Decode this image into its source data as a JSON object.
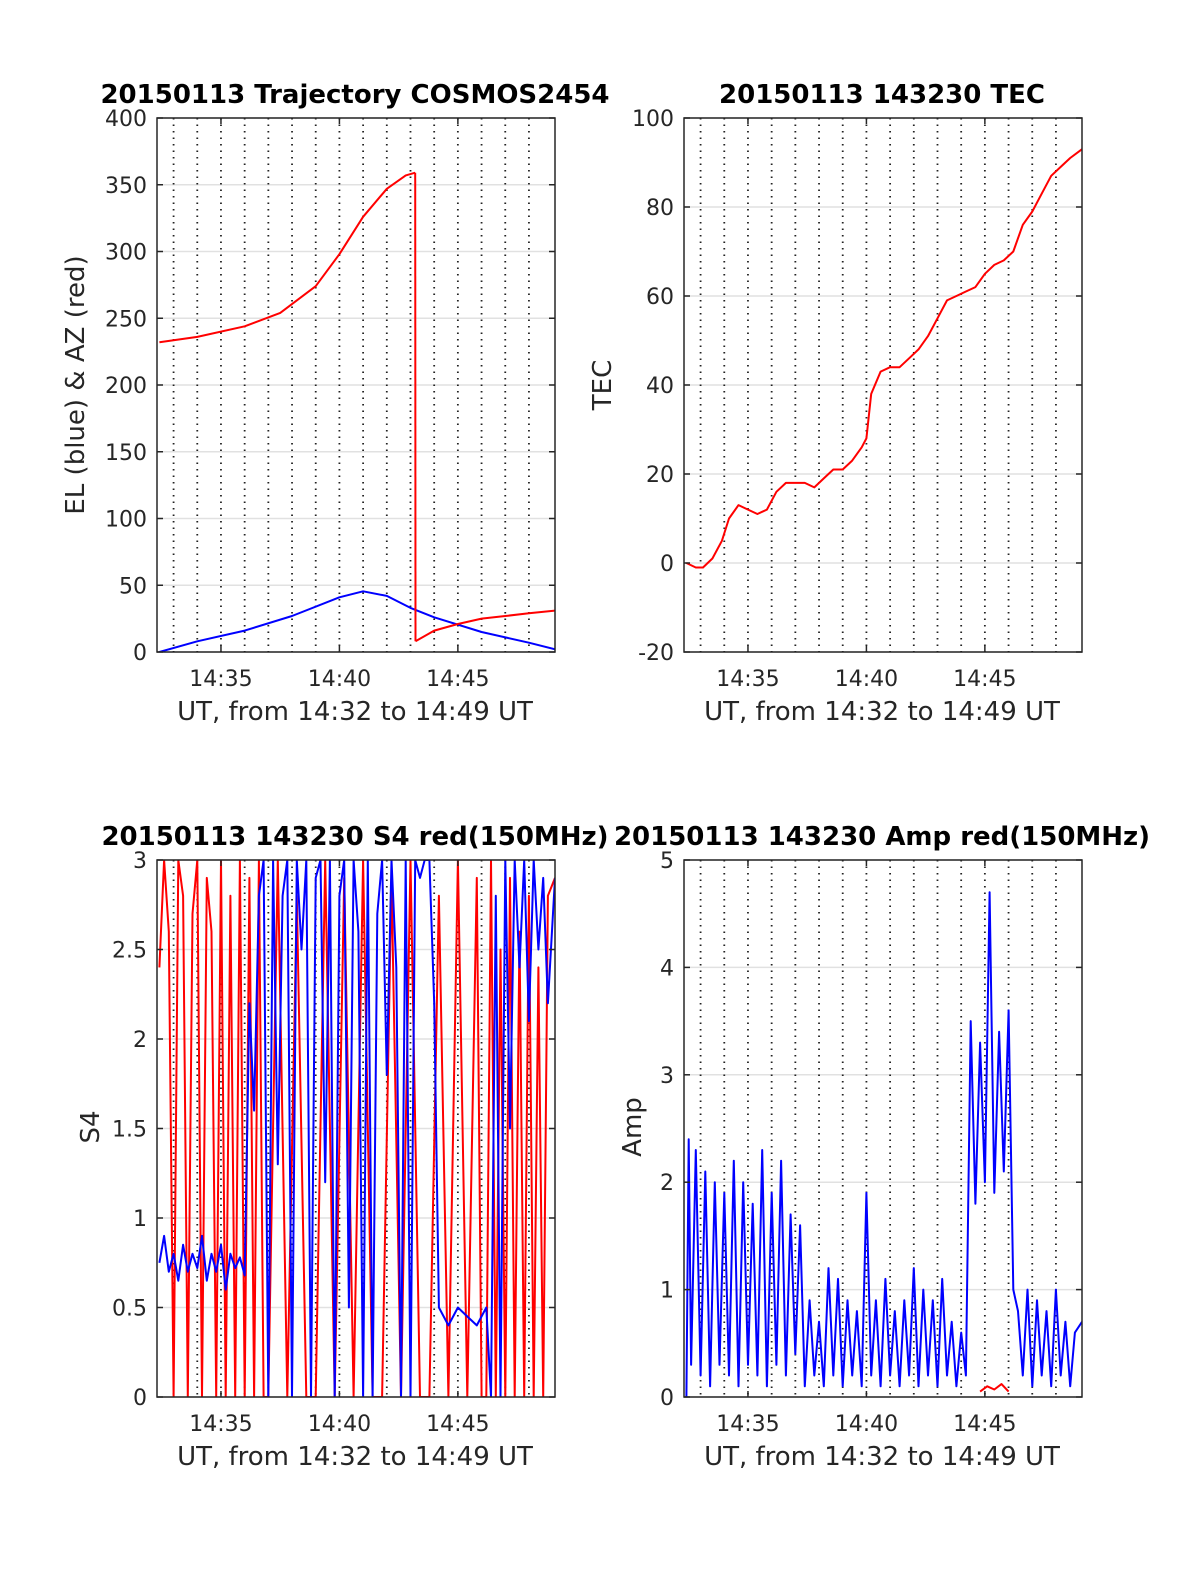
{
  "figure": {
    "colors": {
      "el": "#0000ff",
      "az": "#ff0000",
      "tec": "#ff0000",
      "s4_red": "#ff0000",
      "s4_blue": "#0000ff",
      "amp_red": "#ff0000",
      "amp_blue": "#0000ff"
    }
  },
  "chart_data": [
    {
      "id": "traj",
      "type": "line",
      "title": "20150113 Trajectory COSMOS2454",
      "xlabel": "UT, from 14:32 to 14:49 UT",
      "ylabel": "EL (blue) & AZ (red)",
      "x_unit": "minutes after 14:00 UT",
      "xlim": [
        32.3,
        49.1
      ],
      "ylim": [
        0,
        400
      ],
      "yticks": [
        0,
        50,
        100,
        150,
        200,
        250,
        300,
        350,
        400
      ],
      "ytick_labels": [
        "0",
        "50",
        "100",
        "150",
        "200",
        "250",
        "300",
        "350",
        "400"
      ],
      "xticks": [
        35,
        40,
        45
      ],
      "xtick_labels": [
        "14:35",
        "14:40",
        "14:45"
      ],
      "minor_xticks": [
        33,
        34,
        35,
        36,
        37,
        38,
        39,
        40,
        41,
        42,
        43,
        44,
        45,
        46,
        47,
        48
      ],
      "grid": true,
      "series": [
        {
          "color": "#0000ff",
          "x": [
            32.4,
            34,
            36,
            38,
            40,
            41,
            42,
            43,
            44,
            46,
            48,
            49.1
          ],
          "y": [
            0,
            8,
            16,
            27,
            41,
            45.5,
            42,
            33,
            26,
            15,
            7,
            2
          ]
        },
        {
          "color": "#ff0000",
          "x": [
            32.4,
            34,
            36,
            37.5,
            39,
            40,
            41,
            42,
            42.8,
            43.2
          ],
          "y": [
            232,
            236,
            244,
            254,
            274,
            298,
            326,
            347,
            357,
            359
          ]
        },
        {
          "color": "#ff0000",
          "x": [
            43.2,
            43.21
          ],
          "y": [
            359,
            8
          ]
        },
        {
          "color": "#ff0000",
          "x": [
            43.21,
            44,
            45,
            46,
            47,
            48,
            49.1
          ],
          "y": [
            8,
            16,
            21,
            25,
            27,
            29,
            31
          ]
        }
      ]
    },
    {
      "id": "tec",
      "type": "line",
      "title": "20150113 143230 TEC",
      "xlabel": "UT, from 14:32 to 14:49 UT",
      "ylabel": "TEC",
      "x_unit": "minutes after 14:00 UT",
      "xlim": [
        32.3,
        49.1
      ],
      "ylim": [
        -20,
        100
      ],
      "yticks": [
        -20,
        0,
        20,
        40,
        60,
        80,
        100
      ],
      "ytick_labels": [
        "-20",
        "0",
        "20",
        "40",
        "60",
        "80",
        "100"
      ],
      "xticks": [
        35,
        40,
        45
      ],
      "xtick_labels": [
        "14:35",
        "14:40",
        "14:45"
      ],
      "minor_xticks": [
        33,
        34,
        35,
        36,
        37,
        38,
        39,
        40,
        41,
        42,
        43,
        44,
        45,
        46,
        47,
        48
      ],
      "grid": true,
      "series": [
        {
          "color": "#ff0000",
          "x": [
            32.4,
            32.8,
            33.1,
            33.5,
            33.9,
            34.2,
            34.6,
            35.0,
            35.4,
            35.8,
            36.2,
            36.6,
            37.0,
            37.4,
            37.8,
            38.2,
            38.6,
            39.0,
            39.4,
            39.8,
            40.0,
            40.2,
            40.6,
            41.0,
            41.4,
            41.8,
            42.2,
            42.6,
            43.0,
            43.4,
            43.8,
            44.2,
            44.6,
            45.0,
            45.4,
            45.8,
            46.2,
            46.6,
            47.0,
            47.4,
            47.8,
            48.2,
            48.6,
            49.1
          ],
          "y": [
            0,
            -1,
            -1,
            1,
            5,
            10,
            13,
            12,
            11,
            12,
            16,
            18,
            18,
            18,
            17,
            19,
            21,
            21,
            23,
            26,
            28,
            38,
            43,
            44,
            44,
            46,
            48,
            51,
            55,
            59,
            60,
            61,
            62,
            65,
            67,
            68,
            70,
            76,
            79,
            83,
            87,
            89,
            91,
            93
          ]
        }
      ]
    },
    {
      "id": "s4",
      "type": "line",
      "title": "20150113 143230 S4 red(150MHz)",
      "xlabel": "UT, from 14:32 to 14:49 UT",
      "ylabel": "S4",
      "x_unit": "minutes after 14:00 UT",
      "xlim": [
        32.3,
        49.1
      ],
      "ylim": [
        0,
        3
      ],
      "yticks": [
        0,
        0.5,
        1,
        1.5,
        2,
        2.5,
        3
      ],
      "ytick_labels": [
        "0",
        "0.5",
        "1",
        "1.5",
        "2",
        "2.5",
        "3"
      ],
      "xticks": [
        35,
        40,
        45
      ],
      "xtick_labels": [
        "14:35",
        "14:40",
        "14:45"
      ],
      "minor_xticks": [
        33,
        34,
        35,
        36,
        37,
        38,
        39,
        40,
        41,
        42,
        43,
        44,
        45,
        46,
        47,
        48
      ],
      "grid": true,
      "series": [
        {
          "color": "#ff0000",
          "x": [
            32.4,
            32.6,
            32.8,
            33.0,
            33.2,
            33.4,
            33.6,
            33.8,
            34.0,
            34.2,
            34.4,
            34.6,
            34.8,
            35.0,
            35.2,
            35.4,
            35.6,
            35.8,
            36.0,
            36.2,
            36.4,
            36.6,
            36.8,
            37.0,
            37.4,
            37.8,
            38.2,
            38.6,
            39.0,
            39.4,
            39.8,
            40.2,
            40.6,
            41.0,
            41.4,
            41.8,
            42.2,
            42.6,
            43.0,
            43.4,
            43.8,
            44.2,
            44.6,
            45.0,
            45.4,
            45.8,
            46.0,
            46.2,
            46.4,
            46.6,
            46.8,
            47.0,
            47.2,
            47.4,
            47.6,
            47.8,
            48.0,
            48.2,
            48.4,
            48.6,
            48.8,
            49.1
          ],
          "y": [
            2.4,
            3,
            2.6,
            0,
            3,
            2.8,
            0,
            2.7,
            3,
            0,
            2.9,
            2.6,
            0,
            3,
            0,
            2.8,
            0,
            3,
            0,
            2.9,
            0,
            3,
            0,
            0,
            3,
            0,
            2.8,
            0,
            0,
            3,
            0,
            2.9,
            0,
            3,
            0,
            0,
            2.9,
            0,
            3,
            0,
            0,
            2.8,
            0,
            3,
            0,
            2.9,
            0,
            0,
            3,
            0,
            2.5,
            0,
            2.9,
            0,
            2.6,
            0,
            2.8,
            0,
            2.4,
            0,
            2.8,
            2.9
          ]
        },
        {
          "color": "#0000ff",
          "x": [
            32.4,
            32.6,
            32.8,
            33.0,
            33.2,
            33.4,
            33.6,
            33.8,
            34.0,
            34.2,
            34.4,
            34.6,
            34.8,
            35.0,
            35.2,
            35.4,
            35.6,
            35.8,
            36.0,
            36.2,
            36.4,
            36.6,
            36.8,
            37.0,
            37.2,
            37.4,
            37.6,
            37.8,
            38.0,
            38.2,
            38.4,
            38.6,
            38.8,
            39.0,
            39.2,
            39.4,
            39.6,
            39.8,
            40.0,
            40.2,
            40.4,
            40.6,
            40.8,
            41.0,
            41.2,
            41.4,
            41.6,
            41.8,
            42.0,
            42.2,
            42.4,
            42.6,
            42.8,
            43.0,
            43.2,
            43.4,
            43.6,
            43.8,
            44.0,
            44.2,
            44.6,
            45.0,
            45.4,
            45.8,
            46.2,
            46.4,
            46.6,
            46.8,
            47.0,
            47.2,
            47.4,
            47.6,
            47.8,
            48.0,
            48.2,
            48.4,
            48.6,
            48.8,
            49.1
          ],
          "y": [
            0.75,
            0.9,
            0.7,
            0.8,
            0.65,
            0.85,
            0.7,
            0.8,
            0.72,
            0.9,
            0.65,
            0.8,
            0.7,
            0.85,
            0.6,
            0.8,
            0.72,
            0.78,
            0.68,
            2.2,
            1.6,
            2.8,
            3,
            0,
            3,
            1.3,
            2.8,
            3,
            0,
            3,
            2.5,
            3,
            0,
            2.9,
            3,
            1.2,
            3,
            0,
            2.8,
            3,
            0.5,
            3,
            2.6,
            0,
            3,
            0,
            2.7,
            3,
            1.8,
            3,
            2.4,
            0,
            3,
            0,
            3,
            2.9,
            3,
            3,
            2.2,
            0.5,
            0.4,
            0.5,
            0.45,
            0.4,
            0.5,
            0,
            2.8,
            0,
            3,
            1.5,
            3,
            2.4,
            3,
            2.1,
            3,
            2.5,
            2.9,
            2.2,
            2.9
          ]
        }
      ]
    },
    {
      "id": "amp",
      "type": "line",
      "title": "20150113 143230 Amp red(150MHz)",
      "xlabel": "UT, from 14:32 to 14:49 UT",
      "ylabel": "Amp",
      "x_unit": "minutes after 14:00 UT",
      "xlim": [
        32.3,
        49.1
      ],
      "ylim": [
        0,
        5
      ],
      "yticks": [
        0,
        1,
        2,
        3,
        4,
        5
      ],
      "ytick_labels": [
        "0",
        "1",
        "2",
        "3",
        "4",
        "5"
      ],
      "xticks": [
        35,
        40,
        45
      ],
      "xtick_labels": [
        "14:35",
        "14:40",
        "14:45"
      ],
      "minor_xticks": [
        33,
        34,
        35,
        36,
        37,
        38,
        39,
        40,
        41,
        42,
        43,
        44,
        45,
        46,
        47,
        48
      ],
      "grid": true,
      "series": [
        {
          "color": "#0000ff",
          "x": [
            32.4,
            32.5,
            32.6,
            32.8,
            33.0,
            33.2,
            33.4,
            33.6,
            33.8,
            34.0,
            34.2,
            34.4,
            34.6,
            34.8,
            35.0,
            35.2,
            35.4,
            35.6,
            35.8,
            36.0,
            36.2,
            36.4,
            36.6,
            36.8,
            37.0,
            37.2,
            37.4,
            37.6,
            37.8,
            38.0,
            38.2,
            38.4,
            38.6,
            38.8,
            39.0,
            39.2,
            39.4,
            39.6,
            39.8,
            40.0,
            40.2,
            40.4,
            40.6,
            40.8,
            41.0,
            41.2,
            41.4,
            41.6,
            41.8,
            42.0,
            42.2,
            42.4,
            42.6,
            42.8,
            43.0,
            43.2,
            43.4,
            43.6,
            43.8,
            44.0,
            44.2,
            44.4,
            44.6,
            44.8,
            45.0,
            45.2,
            45.4,
            45.6,
            45.8,
            46.0,
            46.2,
            46.4,
            46.6,
            46.8,
            47.0,
            47.2,
            47.4,
            47.6,
            47.8,
            48.0,
            48.2,
            48.4,
            48.6,
            48.8,
            49.1
          ],
          "y": [
            0,
            2.4,
            0.3,
            2.3,
            0.2,
            2.1,
            0.1,
            2.0,
            0.3,
            1.9,
            0.2,
            2.2,
            0.1,
            2.0,
            0.3,
            1.8,
            0.2,
            2.3,
            0.1,
            1.9,
            0.3,
            2.2,
            0.2,
            1.7,
            0.4,
            1.6,
            0.1,
            0.9,
            0.2,
            0.7,
            0.1,
            1.2,
            0.2,
            1.1,
            0.1,
            0.9,
            0.2,
            0.8,
            0.1,
            1.9,
            0.2,
            0.9,
            0.1,
            1.1,
            0.2,
            0.8,
            0.1,
            0.9,
            0.2,
            1.2,
            0.1,
            1.0,
            0.2,
            0.9,
            0.1,
            1.1,
            0.2,
            0.7,
            0.1,
            0.6,
            0.2,
            3.5,
            1.8,
            3.3,
            2.0,
            4.7,
            1.9,
            3.4,
            2.1,
            3.6,
            1.0,
            0.8,
            0.2,
            1.0,
            0.1,
            0.9,
            0.2,
            0.8,
            0.1,
            1.0,
            0.2,
            0.7,
            0.1,
            0.6,
            0.7
          ]
        },
        {
          "color": "#ff0000",
          "x": [
            44.8,
            45.1,
            45.4,
            45.7,
            46.0
          ],
          "y": [
            0.05,
            0.1,
            0.07,
            0.12,
            0.05
          ]
        }
      ]
    }
  ]
}
